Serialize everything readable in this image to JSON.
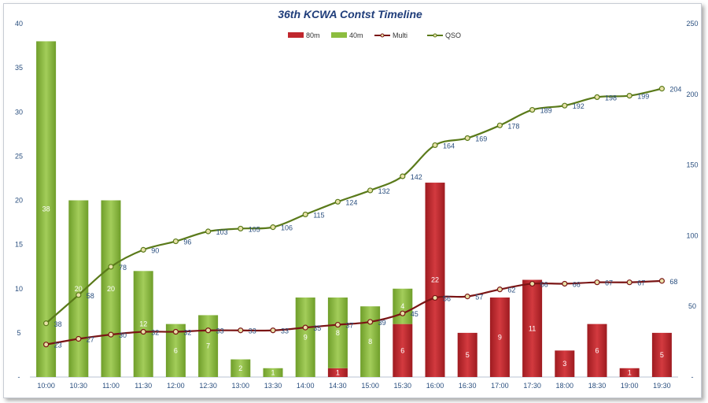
{
  "chart_data": {
    "type": "bar",
    "title": "36th KCWA Contst Timeline",
    "categories": [
      "10:00",
      "10:30",
      "11:00",
      "11:30",
      "12:00",
      "12:30",
      "13:00",
      "13:30",
      "14:00",
      "14:30",
      "15:00",
      "15:30",
      "16:00",
      "16:30",
      "17:00",
      "17:30",
      "18:00",
      "18:30",
      "19:00",
      "19:30"
    ],
    "series": [
      {
        "name": "80m",
        "kind": "bar",
        "axis": "left",
        "color": "#c0272d",
        "values": [
          0,
          0,
          0,
          0,
          0,
          0,
          0,
          0,
          0,
          1,
          0,
          6,
          22,
          5,
          9,
          11,
          3,
          6,
          1,
          5
        ]
      },
      {
        "name": "40m",
        "kind": "bar",
        "axis": "left",
        "color": "#8cbd3f",
        "values": [
          38,
          20,
          20,
          12,
          6,
          7,
          2,
          1,
          9,
          8,
          8,
          4,
          0,
          0,
          0,
          0,
          0,
          0,
          0,
          0
        ]
      },
      {
        "name": "Multi",
        "kind": "line",
        "axis": "right",
        "color": "#7a1515",
        "values": [
          23,
          27,
          30,
          32,
          32,
          33,
          33,
          33,
          35,
          37,
          39,
          45,
          56,
          57,
          62,
          66,
          66,
          67,
          67,
          68
        ]
      },
      {
        "name": "QSO",
        "kind": "line",
        "axis": "right",
        "color": "#5a7a1a",
        "values": [
          38,
          58,
          78,
          90,
          96,
          103,
          105,
          106,
          115,
          124,
          132,
          142,
          164,
          169,
          178,
          189,
          192,
          198,
          199,
          204
        ]
      }
    ],
    "left_axis": {
      "min": 0,
      "max": 40,
      "ticks": [
        "-",
        "5",
        "10",
        "15",
        "20",
        "25",
        "30",
        "35",
        "40"
      ]
    },
    "right_axis": {
      "min": 0,
      "max": 250,
      "ticks": [
        "-",
        "50",
        "100",
        "150",
        "200",
        "250"
      ]
    },
    "legend": {
      "position": "top-center",
      "entries": [
        "80m",
        "40m",
        "Multi",
        "QSO"
      ]
    },
    "grid": false
  }
}
